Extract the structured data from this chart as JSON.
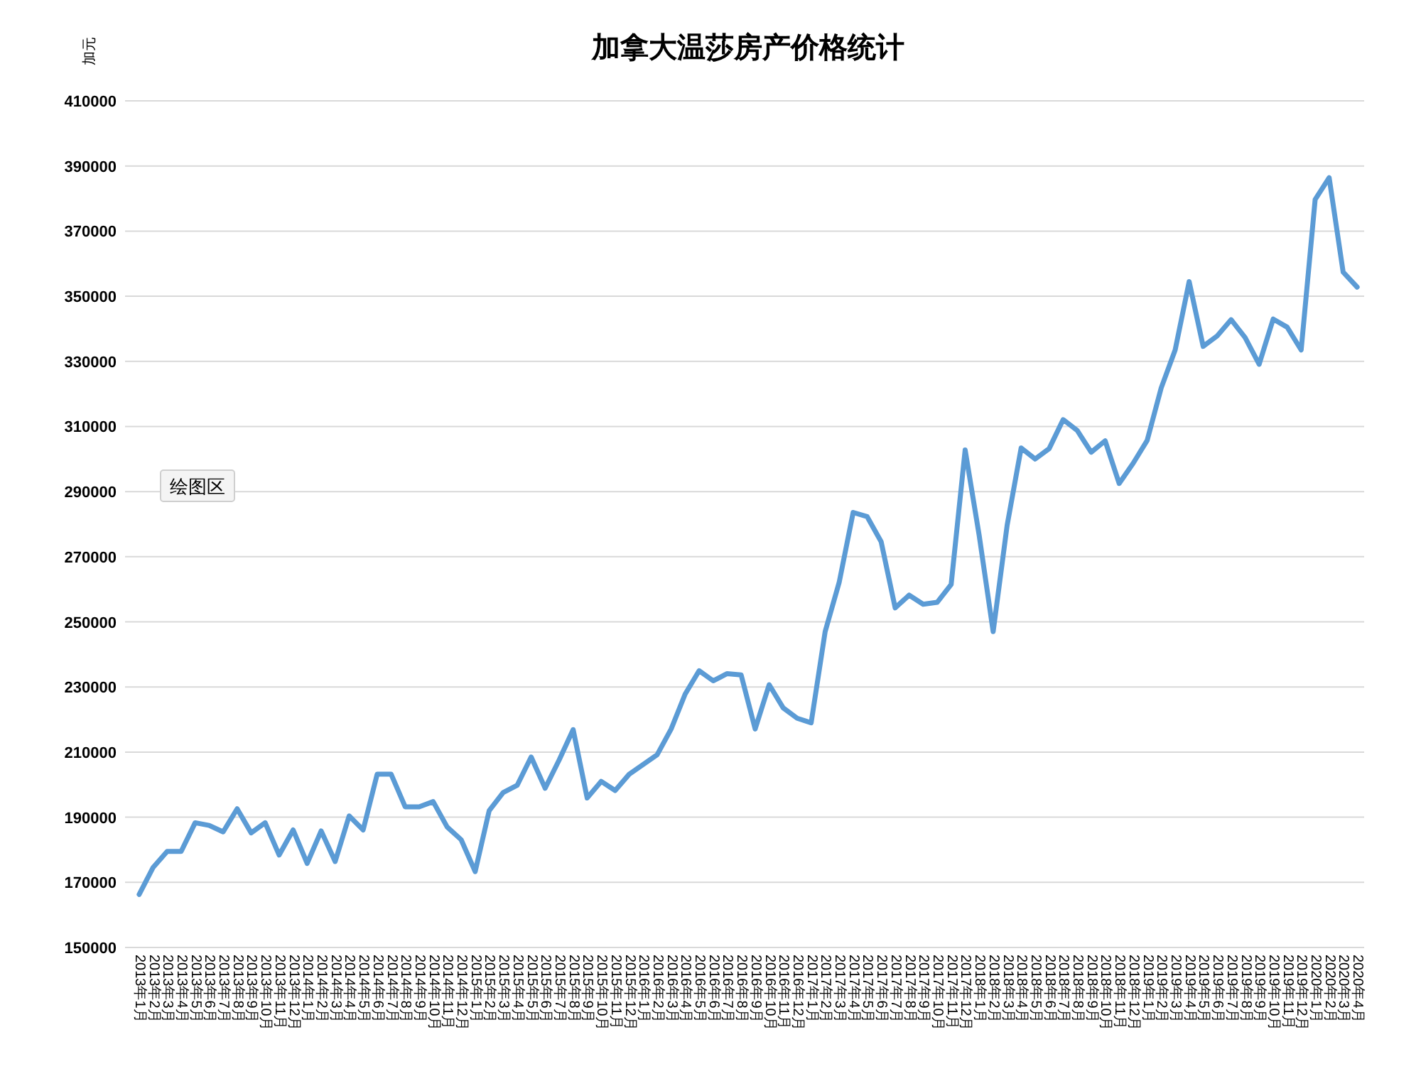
{
  "chart_data": {
    "type": "line",
    "title": "加拿大温莎房产价格统计",
    "ylabel": "加元",
    "categories": [
      "2013年1月",
      "2013年2月",
      "2013年3月",
      "2013年4月",
      "2013年5月",
      "2013年6月",
      "2013年7月",
      "2013年8月",
      "2013年9月",
      "2013年10月",
      "2013年11月",
      "2013年12月",
      "2014年1月",
      "2014年2月",
      "2014年3月",
      "2014年4月",
      "2014年5月",
      "2014年6月",
      "2014年7月",
      "2014年8月",
      "2014年9月",
      "2014年10月",
      "2014年11月",
      "2014年12月",
      "2015年1月",
      "2015年2月",
      "2015年3月",
      "2015年4月",
      "2015年5月",
      "2015年6月",
      "2015年7月",
      "2015年8月",
      "2015年9月",
      "2015年10月",
      "2015年11月",
      "2015年12月",
      "2016年1月",
      "2016年2月",
      "2016年3月",
      "2016年4月",
      "2016年5月",
      "2016年6月",
      "2016年7月",
      "2016年8月",
      "2016年9月",
      "2016年10月",
      "2016年11月",
      "2016年12月",
      "2017年1月",
      "2017年2月",
      "2017年3月",
      "2017年4月",
      "2017年5月",
      "2017年6月",
      "2017年7月",
      "2017年8月",
      "2017年9月",
      "2017年10月",
      "2017年11月",
      "2017年12月",
      "2018年1月",
      "2018年2月",
      "2018年3月",
      "2018年4月",
      "2018年5月",
      "2018年6月",
      "2018年7月",
      "2018年8月",
      "2018年9月",
      "2018年10月",
      "2018年11月",
      "2018年12月",
      "2019年1月",
      "2019年2月",
      "2019年3月",
      "2019年4月",
      "2019年5月",
      "2019年6月",
      "2019年7月",
      "2019年8月",
      "2019年9月",
      "2019年10月",
      "2019年11月",
      "2019年12月",
      "2020年1月",
      "2020年2月",
      "2020年3月",
      "2020年4月"
    ],
    "series": [
      {
        "color": "#5b9bd5",
        "values": [
          166300,
          174600,
          179500,
          179500,
          188300,
          187500,
          185500,
          192600,
          185200,
          188300,
          178400,
          186100,
          175800,
          185800,
          176400,
          190400,
          186100,
          203200,
          203200,
          193200,
          193200,
          194800,
          187000,
          183100,
          173300,
          192000,
          197600,
          199800,
          208500,
          198900,
          207600,
          216900,
          195900,
          201000,
          198200,
          203200,
          206200,
          209200,
          217100,
          227800,
          235000,
          231900,
          234100,
          233700,
          217100,
          230700,
          223600,
          220400,
          219000,
          247000,
          262100,
          283600,
          282300,
          274600,
          254300,
          258200,
          255400,
          256000,
          261500,
          302800,
          276600,
          247000,
          279700,
          303400,
          300000,
          303200,
          312100,
          308800,
          302100,
          305600,
          292500,
          298700,
          305700,
          321800,
          333500,
          354500,
          334600,
          337800,
          342800,
          337300,
          329100,
          343000,
          340500,
          333500,
          379700,
          386400,
          357400,
          352800
        ]
      }
    ],
    "ylim": [
      150000,
      410000
    ],
    "yticks": [
      150000,
      170000,
      190000,
      210000,
      230000,
      250000,
      270000,
      290000,
      310000,
      330000,
      350000,
      370000,
      390000,
      410000
    ],
    "grid": "y",
    "annotations": [
      "绘图区"
    ]
  }
}
